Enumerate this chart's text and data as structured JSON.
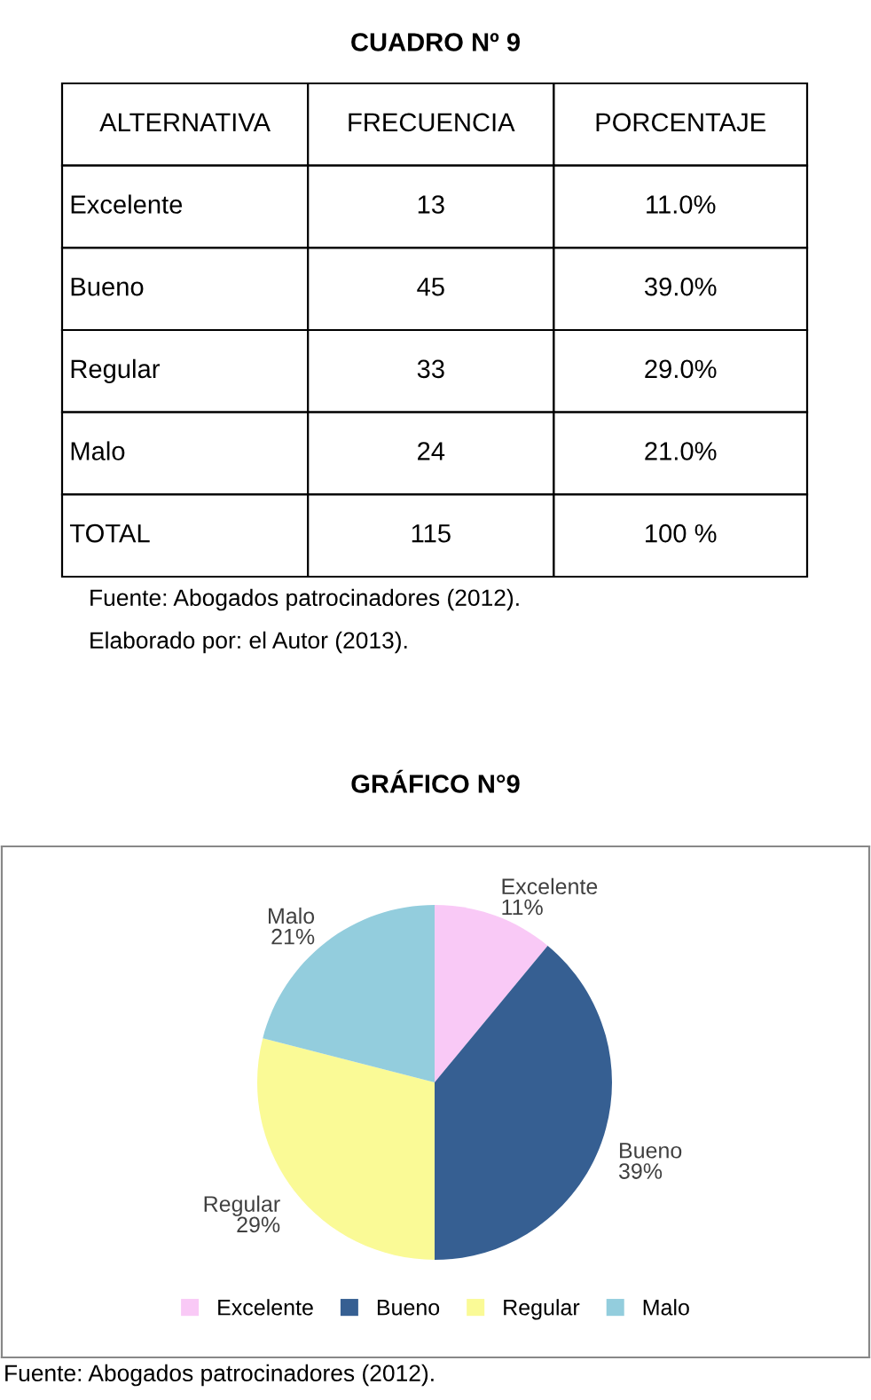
{
  "chart_data": [
    {
      "type": "other",
      "title": "CUADRO Nº 9",
      "categories": [
        "ALTERNATIVA",
        "FRECUENCIA",
        "PORCENTAJE"
      ],
      "y_categories": [
        "Excelente",
        "Bueno",
        "Regular",
        "Malo",
        "TOTAL"
      ],
      "cell_labels": [
        [
          "13",
          "11.0%"
        ],
        [
          "45",
          "39.0%"
        ],
        [
          "33",
          "29.0%"
        ],
        [
          "24",
          "21.0%"
        ],
        [
          "115",
          "100 %"
        ]
      ],
      "annotations": [
        "Fuente: Abogados patrocinadores (2012).",
        "Elaborado por: el Autor (2013)."
      ]
    },
    {
      "type": "pie",
      "title": "GRÁFICO N°9",
      "categories": [
        "Excelente",
        "Bueno",
        "Regular",
        "Malo"
      ],
      "values": [
        11,
        39,
        29,
        21
      ],
      "colors": [
        "#f9c9f6",
        "#365f92",
        "#fafa96",
        "#93cddd"
      ],
      "value_labels": [
        "11%",
        "39%",
        "29%",
        "21%"
      ],
      "legend": "bottom",
      "annotations": [
        "Fuente: Abogados patrocinadores (2012)."
      ]
    }
  ]
}
